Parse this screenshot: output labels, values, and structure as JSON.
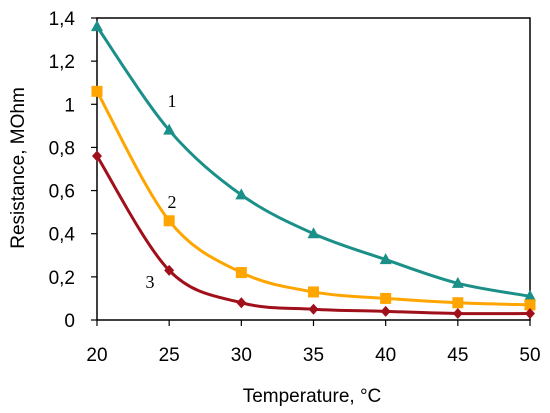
{
  "chart_data": {
    "type": "line",
    "xlabel": "Temperature, °C",
    "ylabel": "Resistance, MOhm",
    "xlim": [
      20,
      50
    ],
    "ylim": [
      0,
      1.4
    ],
    "xticks": [
      "20",
      "25",
      "30",
      "35",
      "40",
      "45",
      "50"
    ],
    "yticks": [
      "0",
      "0,2",
      "0,4",
      "0,6",
      "0,8",
      "1",
      "1,2",
      "1,4"
    ],
    "grid": false,
    "x": [
      20,
      25,
      30,
      35,
      40,
      45,
      50
    ],
    "series": [
      {
        "label": "1",
        "color": "#1a9088",
        "marker": "triangle",
        "values": [
          1.36,
          0.88,
          0.58,
          0.4,
          0.28,
          0.17,
          0.11
        ]
      },
      {
        "label": "2",
        "color": "#ffa500",
        "marker": "square",
        "values": [
          1.06,
          0.46,
          0.22,
          0.13,
          0.1,
          0.08,
          0.07
        ]
      },
      {
        "label": "3",
        "color": "#a0101a",
        "marker": "diamond",
        "values": [
          0.76,
          0.23,
          0.08,
          0.05,
          0.04,
          0.03,
          0.03
        ]
      }
    ]
  }
}
